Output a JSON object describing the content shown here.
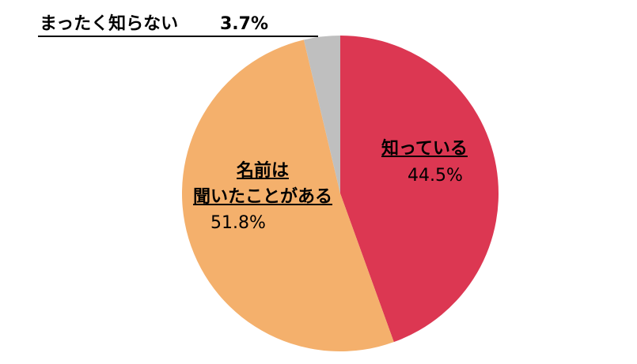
{
  "chart_data": {
    "type": "pie",
    "categories": [
      "知っている",
      "名前は\n聞いたことがある",
      "まったく知らない"
    ],
    "values": [
      44.5,
      51.8,
      3.7
    ],
    "value_labels": [
      "44.5%",
      "51.8%",
      "3.7%"
    ],
    "colors": [
      "#dc3752",
      "#f4b06c",
      "#bfbfbf"
    ]
  }
}
